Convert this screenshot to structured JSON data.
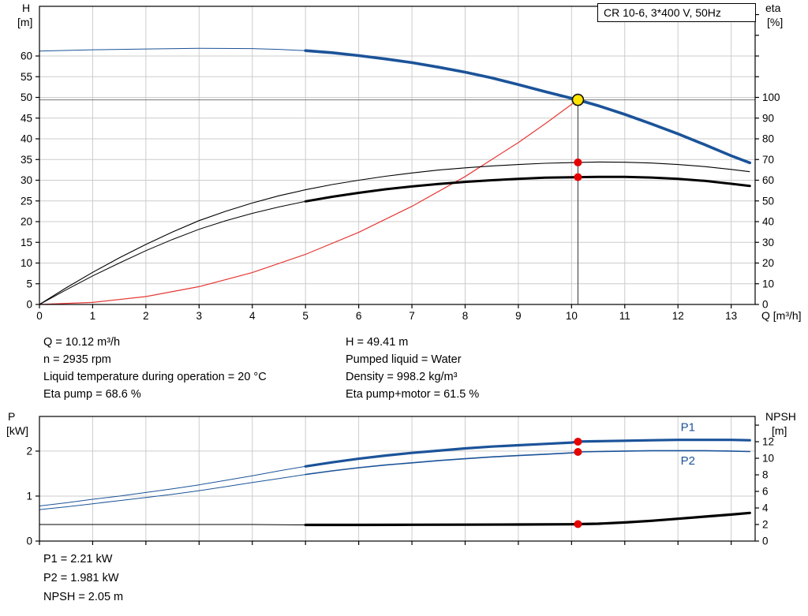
{
  "title_box": "CR 10-6, 3*400 V, 50Hz",
  "labels": {
    "h_axis_name": "H",
    "h_axis_unit": "[m]",
    "eta_axis_name": "eta",
    "eta_axis_unit": "[%]",
    "p_axis_name": "P",
    "p_axis_unit": "[kW]",
    "npsh_axis_name": "NPSH",
    "npsh_axis_unit": "[m]"
  },
  "info": {
    "left": [
      "Q = 10.12 m³/h",
      "n = 2935 rpm",
      "Liquid temperature during operation = 20 °C",
      "Eta pump = 68.6 %"
    ],
    "right": [
      "H = 49.41 m",
      "Pumped liquid = Water",
      "Density = 998.2 kg/m³",
      "Eta pump+motor = 61.5 %"
    ]
  },
  "footer": [
    "P1 = 2.21 kW",
    "P2 = 1.981 kW",
    "NPSH = 2.05 m"
  ],
  "colors": {
    "curve_blue": "#1b5399",
    "curve_black": "#000000",
    "system_red": "#e53935",
    "dot_red": "#e60000",
    "duty_fill": "#ffe400",
    "grid": "#cccccc"
  },
  "chart_data": [
    {
      "id": "head",
      "type": "line",
      "title": "CR 10-6, 3*400 V, 50Hz",
      "x_axis": {
        "label": "Q [m³/h]",
        "min": 0,
        "max": 13.45,
        "ticks": [
          0,
          1,
          2,
          3,
          4,
          5,
          6,
          7,
          8,
          9,
          10,
          11,
          12,
          13
        ]
      },
      "left_axis": {
        "name": "H",
        "unit": "[m]",
        "min": 0,
        "max": 72,
        "ticks": [
          0,
          5,
          10,
          15,
          20,
          25,
          30,
          35,
          40,
          45,
          50,
          55,
          60
        ]
      },
      "right_axis": {
        "name": "eta",
        "unit": "[%]",
        "min": 0,
        "max": 144,
        "ticks": [
          0,
          10,
          20,
          30,
          40,
          50,
          60,
          70,
          80,
          90,
          100
        ],
        "minor_ticks": [
          110,
          120,
          130,
          140
        ]
      },
      "crosshair": {
        "q": 10.12,
        "value": 49.41,
        "axis": "left"
      },
      "series": [
        {
          "name": "system-curve",
          "axis": "left",
          "color": "#e53935",
          "width": 1.2,
          "points": [
            [
              0,
              0
            ],
            [
              1,
              0.5
            ],
            [
              2,
              1.9
            ],
            [
              3,
              4.3
            ],
            [
              4,
              7.7
            ],
            [
              5,
              12.1
            ],
            [
              6,
              17.4
            ],
            [
              7,
              23.7
            ],
            [
              8,
              30.9
            ],
            [
              9,
              39.1
            ],
            [
              9.5,
              43.6
            ],
            [
              10,
              48.3
            ],
            [
              10.12,
              49.41
            ]
          ]
        },
        {
          "name": "eta-pump-curve",
          "axis": "right",
          "color": "#000000",
          "width": 1.1,
          "points": [
            [
              0,
              0
            ],
            [
              0.5,
              8
            ],
            [
              1,
              15.5
            ],
            [
              1.5,
              22.5
            ],
            [
              2,
              29
            ],
            [
              2.5,
              35
            ],
            [
              3,
              40.5
            ],
            [
              3.5,
              45
            ],
            [
              4,
              49
            ],
            [
              4.5,
              52.5
            ],
            [
              5,
              55.4
            ],
            [
              5.5,
              57.9
            ],
            [
              6,
              60
            ],
            [
              6.5,
              61.9
            ],
            [
              7,
              63.5
            ],
            [
              7.5,
              64.9
            ],
            [
              8,
              66
            ],
            [
              8.5,
              66.9
            ],
            [
              9,
              67.6
            ],
            [
              9.5,
              68.2
            ],
            [
              10,
              68.5
            ],
            [
              10.12,
              68.6
            ],
            [
              10.5,
              68.8
            ],
            [
              11,
              68.7
            ],
            [
              11.5,
              68.3
            ],
            [
              12,
              67.6
            ],
            [
              12.5,
              66.6
            ],
            [
              13,
              65.2
            ],
            [
              13.35,
              64.1
            ]
          ]
        },
        {
          "name": "eta-pump-motor-curve",
          "axis": "right",
          "color": "#000000",
          "width": 3,
          "thin_until": 5,
          "points": [
            [
              0,
              0
            ],
            [
              0.5,
              7
            ],
            [
              1,
              13.8
            ],
            [
              1.5,
              20
            ],
            [
              2,
              26
            ],
            [
              2.5,
              31.4
            ],
            [
              3,
              36.3
            ],
            [
              3.5,
              40.4
            ],
            [
              4,
              44
            ],
            [
              4.5,
              47.1
            ],
            [
              5,
              49.8
            ],
            [
              5.5,
              52
            ],
            [
              6,
              53.9
            ],
            [
              6.5,
              55.6
            ],
            [
              7,
              57
            ],
            [
              7.5,
              58.2
            ],
            [
              8,
              59.2
            ],
            [
              8.5,
              60
            ],
            [
              9,
              60.7
            ],
            [
              9.5,
              61.2
            ],
            [
              10,
              61.4
            ],
            [
              10.12,
              61.5
            ],
            [
              10.5,
              61.6
            ],
            [
              11,
              61.6
            ],
            [
              11.5,
              61.3
            ],
            [
              12,
              60.7
            ],
            [
              12.5,
              59.7
            ],
            [
              13,
              58.3
            ],
            [
              13.35,
              57.2
            ]
          ]
        },
        {
          "name": "pump-head-curve",
          "axis": "left",
          "color": "#1b5399",
          "width": 3.6,
          "thin_until": 5,
          "points": [
            [
              0,
              61.2
            ],
            [
              1,
              61.5
            ],
            [
              2,
              61.7
            ],
            [
              3,
              61.85
            ],
            [
              4,
              61.8
            ],
            [
              4.5,
              61.6
            ],
            [
              5,
              61.3
            ],
            [
              5.5,
              60.8
            ],
            [
              6,
              60.1
            ],
            [
              6.5,
              59.3
            ],
            [
              7,
              58.4
            ],
            [
              7.5,
              57.3
            ],
            [
              8,
              56.1
            ],
            [
              8.5,
              54.7
            ],
            [
              9,
              53.1
            ],
            [
              9.5,
              51.4
            ],
            [
              10,
              49.8
            ],
            [
              10.12,
              49.41
            ],
            [
              10.5,
              48
            ],
            [
              11,
              45.9
            ],
            [
              11.5,
              43.6
            ],
            [
              12,
              41.2
            ],
            [
              12.5,
              38.6
            ],
            [
              13,
              35.9
            ],
            [
              13.35,
              34.2
            ]
          ]
        }
      ],
      "markers": [
        {
          "q": 10.12,
          "value": 68.6,
          "axis": "right",
          "style": "dot"
        },
        {
          "q": 10.12,
          "value": 61.5,
          "axis": "right",
          "style": "dot"
        },
        {
          "q": 10.12,
          "value": 49.41,
          "axis": "left",
          "style": "duty"
        }
      ]
    },
    {
      "id": "power",
      "type": "line",
      "x_axis": {
        "label": "",
        "min": 0,
        "max": 13.45,
        "ticks": [
          0,
          1,
          2,
          3,
          4,
          5,
          6,
          7,
          8,
          9,
          10,
          11,
          12,
          13
        ]
      },
      "left_axis": {
        "name": "P",
        "unit": "[kW]",
        "min": 0,
        "max": 2.77,
        "ticks": [
          0,
          1,
          2
        ]
      },
      "right_axis": {
        "name": "NPSH",
        "unit": "[m]",
        "min": 0,
        "max": 15.05,
        "ticks": [
          0,
          2,
          4,
          6,
          8,
          10,
          12
        ],
        "minor_ticks": [
          14
        ]
      },
      "series": [
        {
          "name": "p1-curve",
          "axis": "left",
          "color": "#1b5399",
          "width": 3.2,
          "thin_until": 5,
          "points": [
            [
              0,
              0.78
            ],
            [
              0.5,
              0.85
            ],
            [
              1,
              0.93
            ],
            [
              1.5,
              1
            ],
            [
              2,
              1.08
            ],
            [
              2.5,
              1.16
            ],
            [
              3,
              1.25
            ],
            [
              3.5,
              1.35
            ],
            [
              4,
              1.45
            ],
            [
              4.5,
              1.56
            ],
            [
              5,
              1.66
            ],
            [
              5.5,
              1.75
            ],
            [
              6,
              1.83
            ],
            [
              6.5,
              1.9
            ],
            [
              7,
              1.96
            ],
            [
              7.5,
              2.01
            ],
            [
              8,
              2.06
            ],
            [
              8.5,
              2.1
            ],
            [
              9,
              2.13
            ],
            [
              9.5,
              2.16
            ],
            [
              10,
              2.19
            ],
            [
              10.12,
              2.21
            ],
            [
              10.5,
              2.22
            ],
            [
              11,
              2.23
            ],
            [
              11.5,
              2.24
            ],
            [
              12,
              2.25
            ],
            [
              12.5,
              2.25
            ],
            [
              13,
              2.25
            ],
            [
              13.35,
              2.24
            ]
          ]
        },
        {
          "name": "p2-curve",
          "axis": "left",
          "color": "#1b5399",
          "width": 1.6,
          "thin_until": 5,
          "points": [
            [
              0,
              0.7
            ],
            [
              0.5,
              0.76
            ],
            [
              1,
              0.83
            ],
            [
              1.5,
              0.9
            ],
            [
              2,
              0.97
            ],
            [
              2.5,
              1.04
            ],
            [
              3,
              1.12
            ],
            [
              3.5,
              1.21
            ],
            [
              4,
              1.3
            ],
            [
              4.5,
              1.39
            ],
            [
              5,
              1.48
            ],
            [
              5.5,
              1.56
            ],
            [
              6,
              1.63
            ],
            [
              6.5,
              1.69
            ],
            [
              7,
              1.74
            ],
            [
              7.5,
              1.79
            ],
            [
              8,
              1.83
            ],
            [
              8.5,
              1.87
            ],
            [
              9,
              1.9
            ],
            [
              9.5,
              1.93
            ],
            [
              10,
              1.96
            ],
            [
              10.12,
              1.981
            ],
            [
              10.5,
              1.99
            ],
            [
              11,
              2
            ],
            [
              11.5,
              2.01
            ],
            [
              12,
              2.01
            ],
            [
              12.5,
              2.01
            ],
            [
              13,
              2
            ],
            [
              13.35,
              1.99
            ]
          ]
        },
        {
          "name": "npsh-curve",
          "axis": "right",
          "color": "#000000",
          "width": 3.2,
          "thin_until": 5,
          "points": [
            [
              0,
              2
            ],
            [
              1,
              2
            ],
            [
              2,
              2
            ],
            [
              3,
              2
            ],
            [
              4,
              2
            ],
            [
              5,
              1.95
            ],
            [
              6,
              1.95
            ],
            [
              7,
              1.97
            ],
            [
              8,
              1.98
            ],
            [
              9,
              2
            ],
            [
              10,
              2.03
            ],
            [
              10.12,
              2.05
            ],
            [
              10.5,
              2.1
            ],
            [
              11,
              2.25
            ],
            [
              11.5,
              2.45
            ],
            [
              12,
              2.7
            ],
            [
              12.5,
              2.95
            ],
            [
              13,
              3.2
            ],
            [
              13.35,
              3.4
            ]
          ]
        }
      ],
      "markers": [
        {
          "q": 10.12,
          "value": 2.21,
          "axis": "left",
          "style": "dot"
        },
        {
          "q": 10.12,
          "value": 1.981,
          "axis": "left",
          "style": "dot"
        },
        {
          "q": 10.12,
          "value": 2.05,
          "axis": "right",
          "style": "dot"
        }
      ],
      "labels": [
        {
          "text": "P1",
          "q": 12.05,
          "value": 2.45,
          "axis": "left"
        },
        {
          "text": "P2",
          "q": 12.05,
          "value": 1.7,
          "axis": "left"
        }
      ]
    }
  ]
}
